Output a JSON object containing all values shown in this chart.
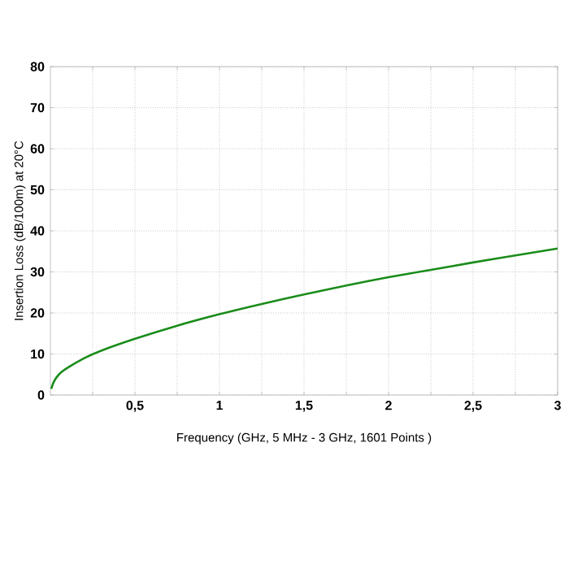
{
  "chart_data": {
    "type": "line",
    "xlabel": "Frequency (GHz, 5 MHz - 3 GHz, 1601 Points )",
    "ylabel": "Insertion Loss (dB/100m) at 20°C",
    "x": [
      0.005,
      0.02,
      0.05,
      0.1,
      0.2,
      0.3,
      0.5,
      0.75,
      1,
      1.25,
      1.5,
      1.75,
      2,
      2.25,
      2.5,
      2.75,
      3
    ],
    "series": [
      {
        "color": "#1a8c1a",
        "values": [
          1.5,
          3.2,
          5,
          6.6,
          9,
          10.8,
          13.7,
          16.9,
          19.7,
          22.2,
          24.5,
          26.7,
          28.7,
          30.5,
          32.3,
          34,
          35.7
        ]
      }
    ],
    "xlim": [
      0,
      3
    ],
    "ylim": [
      0,
      80
    ],
    "xticks": [
      {
        "value": 0.25,
        "label": null
      },
      {
        "value": 0.5,
        "label": "0,5"
      },
      {
        "value": 0.75,
        "label": null
      },
      1,
      {
        "value": 1.25,
        "label": null
      },
      {
        "value": 1.5,
        "label": "1,5"
      },
      {
        "value": 1.75,
        "label": null
      },
      2,
      {
        "value": 2.25,
        "label": null
      },
      {
        "value": 2.5,
        "label": "2,5"
      },
      {
        "value": 2.75,
        "label": null
      },
      3
    ],
    "yticks": [
      0,
      10,
      20,
      30,
      40,
      50,
      60,
      70,
      80
    ],
    "grid": true,
    "marker": "none",
    "line_style": "solid"
  }
}
